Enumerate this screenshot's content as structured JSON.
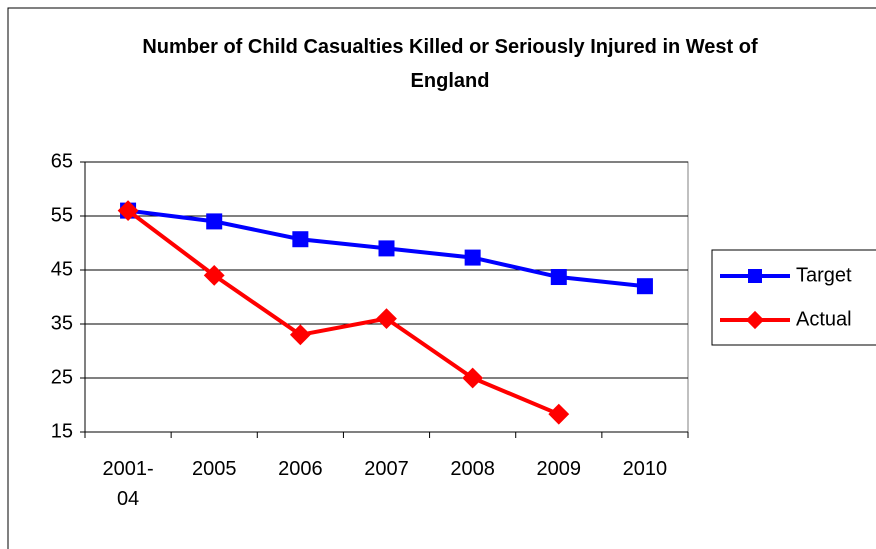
{
  "chart_data": {
    "type": "line",
    "title": "Number of Child Casualties Killed or Seriously Injured in West of England",
    "categories": [
      "2001-04",
      "2005",
      "2006",
      "2007",
      "2008",
      "2009",
      "2010"
    ],
    "series": [
      {
        "name": "Target",
        "color": "#0000ff",
        "marker": "square",
        "values": [
          56,
          54,
          50.7,
          49,
          47.3,
          43.7,
          42
        ]
      },
      {
        "name": "Actual",
        "color": "#ff0000",
        "marker": "diamond",
        "values": [
          56,
          44,
          33,
          36,
          25,
          18.3,
          null
        ]
      }
    ],
    "ylim": [
      15,
      65
    ],
    "yticks": [
      15,
      25,
      35,
      45,
      55,
      65
    ],
    "grid": true,
    "legend": "right"
  }
}
